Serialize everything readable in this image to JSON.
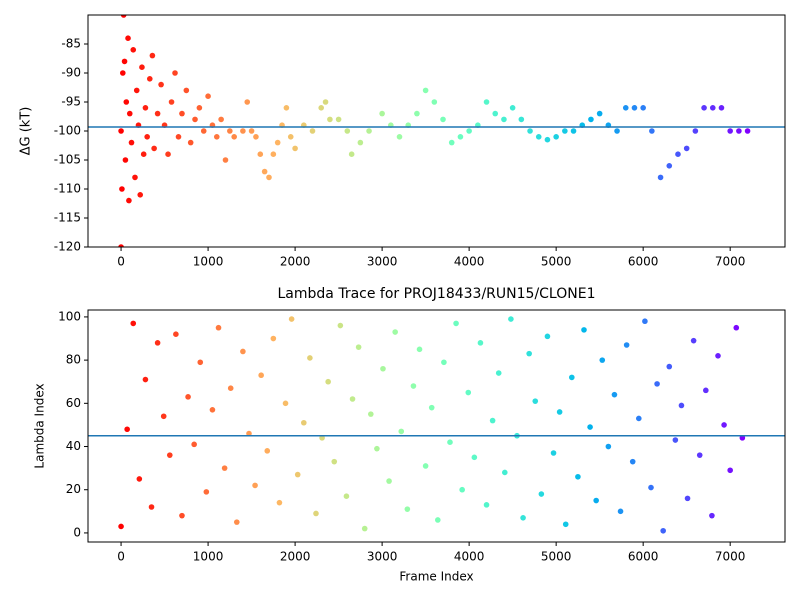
{
  "chart_data": [
    {
      "type": "scatter",
      "y_label": "ΔG (kT)",
      "colormap": "rainbow",
      "colormap_reversed": true,
      "hline": -99.3,
      "hline_color": "#1f77b4",
      "xlim": [
        -380,
        7630
      ],
      "ylim": [
        -120,
        -80
      ],
      "xticks": [
        0,
        1000,
        2000,
        3000,
        4000,
        5000,
        6000,
        7000
      ],
      "yticks": [
        -120,
        -115,
        -110,
        -105,
        -100,
        -95,
        -90,
        -85
      ],
      "x": [
        0,
        0,
        10,
        20,
        30,
        40,
        50,
        60,
        80,
        90,
        100,
        120,
        140,
        160,
        180,
        200,
        220,
        240,
        260,
        280,
        300,
        330,
        360,
        380,
        420,
        460,
        500,
        540,
        580,
        620,
        660,
        700,
        750,
        800,
        850,
        900,
        950,
        1000,
        1050,
        1100,
        1150,
        1200,
        1250,
        1300,
        1400,
        1450,
        1500,
        1550,
        1600,
        1650,
        1700,
        1750,
        1800,
        1850,
        1900,
        1950,
        2000,
        2100,
        2200,
        2300,
        2350,
        2400,
        2500,
        2600,
        2650,
        2750,
        2850,
        3000,
        3100,
        3200,
        3300,
        3400,
        3500,
        3600,
        3700,
        3800,
        3900,
        4000,
        4100,
        4200,
        4300,
        4400,
        4500,
        4600,
        4700,
        4800,
        4900,
        5000,
        5100,
        5200,
        5300,
        5400,
        5500,
        5600,
        5700,
        5800,
        5900,
        6000,
        6100,
        6200,
        6300,
        6400,
        6500,
        6600,
        6700,
        6800,
        6900,
        7000,
        7100,
        7200
      ],
      "values": [
        -120,
        -100,
        -110,
        -90,
        -80,
        -88,
        -105,
        -95,
        -84,
        -112,
        -97,
        -102,
        -86,
        -108,
        -93,
        -99,
        -111,
        -89,
        -104,
        -96,
        -101,
        -91,
        -87,
        -103,
        -97,
        -92,
        -99,
        -104,
        -95,
        -90,
        -101,
        -97,
        -93,
        -102,
        -98,
        -96,
        -100,
        -94,
        -99,
        -101,
        -98,
        -105,
        -100,
        -101,
        -100,
        -95,
        -100,
        -101,
        -104,
        -107,
        -108,
        -104,
        -102,
        -99,
        -96,
        -101,
        -103,
        -99,
        -100,
        -96,
        -95,
        -98,
        -98,
        -100,
        -104,
        -102,
        -100,
        -97,
        -99,
        -101,
        -99,
        -97,
        -93,
        -95,
        -98,
        -102,
        -101,
        -100,
        -99,
        -95,
        -97,
        -98,
        -96,
        -98,
        -100,
        -101,
        -101.5,
        -101,
        -100,
        -100,
        -99,
        -98,
        -97,
        -99,
        -100,
        -96,
        -96,
        -96,
        -100,
        -108,
        -106,
        -104,
        -103,
        -100,
        -96,
        -96,
        -96,
        -100,
        -100,
        -100
      ]
    },
    {
      "type": "scatter",
      "title": "Lambda Trace for PROJ18433/RUN15/CLONE1",
      "x_label": "Frame Index",
      "y_label": "Lambda Index",
      "colormap": "rainbow",
      "colormap_reversed": true,
      "hline": 45,
      "hline_color": "#1f77b4",
      "xlim": [
        -380,
        7630
      ],
      "ylim": [
        -4.2,
        103.2
      ],
      "xticks": [
        0,
        1000,
        2000,
        3000,
        4000,
        5000,
        6000,
        7000
      ],
      "yticks": [
        0,
        20,
        40,
        60,
        80,
        100
      ],
      "x": [
        0,
        70,
        140,
        210,
        280,
        350,
        420,
        490,
        560,
        630,
        700,
        770,
        840,
        910,
        980,
        1050,
        1120,
        1190,
        1260,
        1330,
        1400,
        1470,
        1540,
        1610,
        1680,
        1750,
        1820,
        1890,
        1960,
        2030,
        2100,
        2170,
        2240,
        2310,
        2380,
        2450,
        2520,
        2590,
        2660,
        2730,
        2800,
        2870,
        2940,
        3010,
        3080,
        3150,
        3220,
        3290,
        3360,
        3430,
        3500,
        3570,
        3640,
        3710,
        3780,
        3850,
        3920,
        3990,
        4060,
        4130,
        4200,
        4270,
        4340,
        4410,
        4480,
        4550,
        4620,
        4690,
        4760,
        4830,
        4900,
        4970,
        5040,
        5110,
        5180,
        5250,
        5320,
        5390,
        5460,
        5530,
        5600,
        5670,
        5740,
        5810,
        5880,
        5950,
        6020,
        6090,
        6160,
        6230,
        6300,
        6370,
        6440,
        6510,
        6580,
        6650,
        6720,
        6790,
        6860,
        6930,
        7000,
        7070,
        7140
      ],
      "values": [
        3,
        48,
        97,
        25,
        71,
        12,
        88,
        54,
        36,
        92,
        8,
        63,
        41,
        79,
        19,
        57,
        95,
        30,
        67,
        5,
        84,
        46,
        22,
        73,
        38,
        90,
        14,
        60,
        99,
        27,
        51,
        81,
        9,
        44,
        70,
        33,
        96,
        17,
        62,
        86,
        2,
        55,
        39,
        76,
        24,
        93,
        47,
        11,
        68,
        85,
        31,
        58,
        6,
        79,
        42,
        97,
        20,
        65,
        35,
        88,
        13,
        52,
        74,
        28,
        99,
        45,
        7,
        83,
        61,
        18,
        91,
        37,
        56,
        4,
        72,
        26,
        94,
        49,
        15,
        80,
        40,
        64,
        10,
        87,
        33,
        53,
        98,
        21,
        69,
        1,
        77,
        43,
        59,
        16,
        89,
        36,
        66,
        8,
        82,
        50,
        29,
        95,
        44
      ]
    }
  ]
}
